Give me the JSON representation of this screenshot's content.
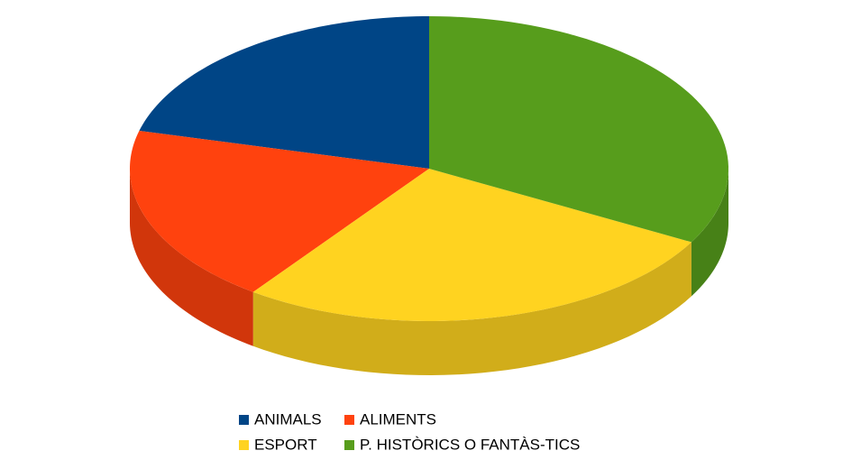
{
  "chart_data": {
    "type": "pie3d",
    "categories": [
      "ANIMALS",
      "ALIMENTS",
      "ESPORT",
      "P. HISTÒRICS O FANTÀS-TICS"
    ],
    "values": [
      21,
      19,
      27,
      33
    ],
    "colors": [
      "#004586",
      "#ff420e",
      "#ffd320",
      "#579d1c"
    ]
  }
}
